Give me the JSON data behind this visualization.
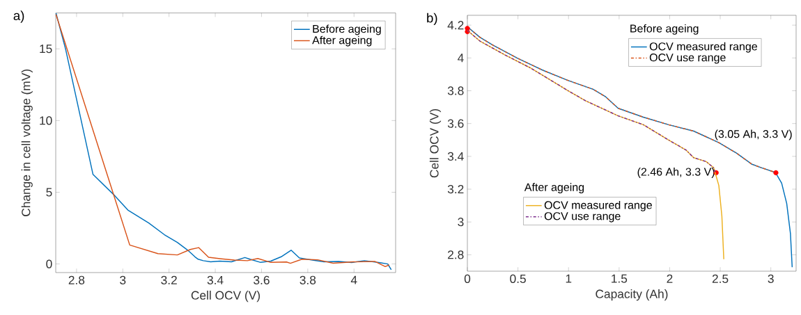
{
  "chart_data": [
    {
      "type": "line",
      "title": "a)",
      "xlabel": "Cell OCV (V)",
      "ylabel": "Change in cell voltage (mV)",
      "xlim": [
        2.71,
        4.18
      ],
      "ylim": [
        -0.6,
        17.5
      ],
      "xticks": [
        2.8,
        3,
        3.2,
        3.4,
        3.6,
        3.8,
        4
      ],
      "yticks": [
        0,
        5,
        10,
        15
      ],
      "grid": false,
      "legend": "top right",
      "marker": "none",
      "line_style": "solid",
      "series": [
        {
          "name": "Before ageing",
          "color": "#0072bd",
          "x": [
            2.711,
            2.753,
            2.871,
            2.966,
            3.022,
            3.112,
            3.18,
            3.236,
            3.281,
            3.312,
            3.326,
            3.348,
            3.38,
            3.42,
            3.47,
            3.528,
            3.55,
            3.596,
            3.64,
            3.685,
            3.728,
            3.764,
            3.82,
            3.87,
            3.933,
            3.99,
            4.045,
            4.112,
            4.146,
            4.161
          ],
          "values": [
            17.5,
            14.96,
            6.25,
            4.75,
            3.76,
            2.86,
            2.04,
            1.5,
            0.96,
            0.5,
            0.33,
            0.23,
            0.15,
            0.2,
            0.15,
            0.45,
            0.33,
            0.11,
            0.2,
            0.5,
            0.96,
            0.42,
            0.27,
            0.15,
            0.18,
            0.1,
            0.23,
            0.09,
            0,
            -0.4
          ]
        },
        {
          "name": "After ageing",
          "color": "#d95319",
          "x": [
            2.711,
            3.03,
            3.152,
            3.236,
            3.292,
            3.328,
            3.371,
            3.427,
            3.483,
            3.539,
            3.584,
            3.64,
            3.708,
            3.725,
            3.775,
            3.843,
            3.91,
            3.989,
            4.09,
            4.135,
            4.152
          ],
          "values": [
            17.4,
            1.32,
            0.72,
            0.63,
            1.01,
            1.14,
            0.47,
            0.36,
            0.27,
            0.23,
            0.38,
            0.11,
            0.14,
            0.05,
            0.33,
            0.29,
            0.05,
            0.14,
            0.18,
            -0.18,
            -0.07
          ]
        }
      ]
    },
    {
      "type": "line",
      "title": "b)",
      "xlabel": "Capacity (Ah)",
      "ylabel": "Cell OCV (V)",
      "xlim": [
        0,
        3.25
      ],
      "ylim": [
        2.7,
        4.26
      ],
      "xticks": [
        0,
        0.5,
        1,
        1.5,
        2,
        2.5,
        3
      ],
      "yticks": [
        2.8,
        3,
        3.2,
        3.4,
        3.6,
        3.8,
        4,
        4.2
      ],
      "grid": false,
      "legend": "top right",
      "legend_title": [
        "Before ageing",
        "After ageing"
      ],
      "marker": "none",
      "annotations": [
        {
          "text": "(2.46 Ah, 3.3 V)",
          "x": 2.46,
          "y": 3.3
        },
        {
          "text": "(3.05 Ah, 3.3 V)",
          "x": 3.05,
          "y": 3.3
        }
      ],
      "series": [
        {
          "name": "OCV measured range",
          "color": "#0072bd",
          "line_style": "solid",
          "x": [
            0,
            0.124,
            0.249,
            0.497,
            0.746,
            0.994,
            1.243,
            1.367,
            1.491,
            1.74,
            1.989,
            2.237,
            2.486,
            2.66,
            2.81,
            2.91,
            3.045,
            3.107,
            3.157,
            3.194,
            3.211
          ],
          "values": [
            4.19,
            4.126,
            4.079,
            3.998,
            3.925,
            3.863,
            3.809,
            3.763,
            3.693,
            3.639,
            3.593,
            3.554,
            3.484,
            3.42,
            3.353,
            3.33,
            3.302,
            3.237,
            3.113,
            2.928,
            2.724
          ]
        },
        {
          "name": "OCV use range",
          "color": "#d95319",
          "line_style": "dashdot",
          "x": [
            0,
            0.124,
            0.249,
            0.497,
            0.746,
            0.994,
            1.243,
            1.367,
            1.491,
            1.74,
            1.989,
            2.237,
            2.486,
            2.66,
            2.81,
            2.91,
            3.045
          ],
          "values": [
            4.19,
            4.126,
            4.079,
            3.998,
            3.925,
            3.863,
            3.809,
            3.763,
            3.693,
            3.639,
            3.593,
            3.554,
            3.484,
            3.42,
            3.353,
            3.33,
            3.302
          ]
        },
        {
          "name": "OCV measured range",
          "color": "#edb120",
          "line_style": "solid",
          "x": [
            0,
            0.124,
            0.373,
            0.621,
            0.994,
            1.168,
            1.491,
            1.74,
            1.989,
            2.163,
            2.237,
            2.361,
            2.436,
            2.448,
            2.486,
            2.516,
            2.535
          ],
          "values": [
            4.168,
            4.103,
            4.018,
            3.94,
            3.801,
            3.739,
            3.647,
            3.593,
            3.5,
            3.438,
            3.392,
            3.368,
            3.33,
            3.304,
            3.222,
            3.036,
            2.773
          ]
        },
        {
          "name": "OCV use range",
          "color": "#7e2f8e",
          "line_style": "dashdot",
          "x": [
            0,
            0.124,
            0.373,
            0.621,
            0.994,
            1.168,
            1.491,
            1.74,
            1.989,
            2.163,
            2.237,
            2.361,
            2.436,
            2.448
          ],
          "values": [
            4.168,
            4.103,
            4.018,
            3.94,
            3.801,
            3.739,
            3.647,
            3.593,
            3.5,
            3.438,
            3.392,
            3.368,
            3.33,
            3.304
          ]
        },
        {
          "type": "scatter",
          "color": "#ff0000",
          "x": [
            0,
            0,
            2.46,
            3.05
          ],
          "values": [
            4.18,
            4.16,
            3.3,
            3.3
          ]
        }
      ]
    }
  ]
}
